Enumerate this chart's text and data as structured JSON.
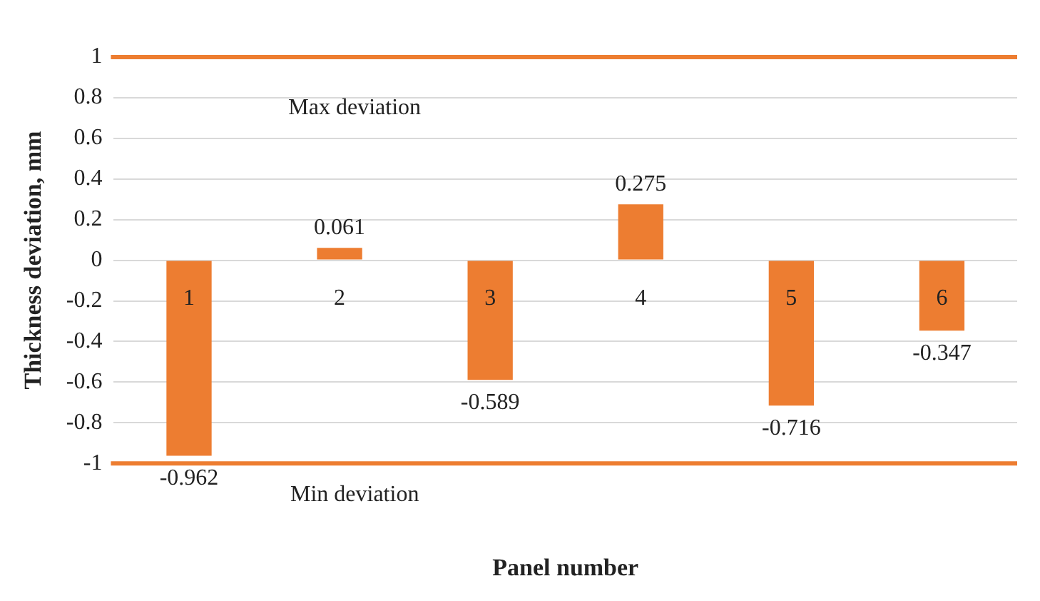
{
  "chart_data": {
    "type": "bar",
    "xlabel": "Panel number",
    "ylabel": "Thickness deviation, mm",
    "categories": [
      "1",
      "2",
      "3",
      "4",
      "5",
      "6"
    ],
    "values": [
      -0.962,
      0.061,
      -0.589,
      0.275,
      -0.716,
      -0.347
    ],
    "color": "#ed7d31",
    "ylim": [
      -1,
      1
    ],
    "yticks": [
      -1,
      -0.8,
      -0.6,
      -0.4,
      -0.2,
      0,
      0.2,
      0.4,
      0.6,
      0.8,
      1
    ],
    "grid": "y",
    "data_labels": true,
    "ref_lines": [
      {
        "axis": "y",
        "value": 1,
        "label": "Max deviation",
        "color": "#ed7d31"
      },
      {
        "axis": "y",
        "value": -1,
        "label": "Min deviation",
        "color": "#ed7d31"
      }
    ]
  }
}
